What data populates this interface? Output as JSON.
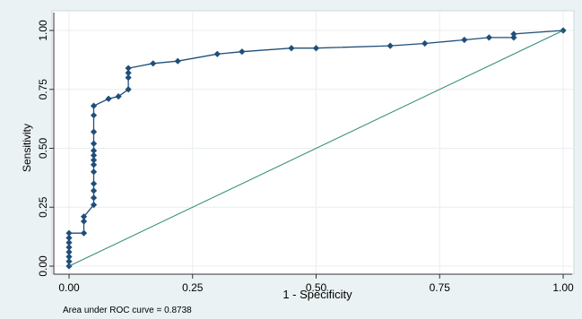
{
  "chart_data": {
    "type": "line",
    "title": "",
    "xlabel": "1 - Specificity",
    "ylabel": "Sensitivity",
    "xlim": [
      0,
      1
    ],
    "ylim": [
      0,
      1
    ],
    "x_ticks": [
      "0.00",
      "0.25",
      "0.50",
      "0.75",
      "1.00"
    ],
    "y_ticks": [
      "0.00",
      "0.25",
      "0.50",
      "0.75",
      "1.00"
    ],
    "grid": true,
    "note": "Area under ROC curve = 0.8738",
    "colors": {
      "curve": "#1f4e79",
      "marker": "#1f4e79",
      "reference": "#2e8b6f",
      "plot_bg": "#ffffff",
      "outer_bg": "#eaf2f3",
      "grid": "#e8eef0"
    },
    "series": [
      {
        "role": "roc",
        "markers": true,
        "points": [
          [
            0,
            0
          ],
          [
            0,
            0.02
          ],
          [
            0,
            0.04
          ],
          [
            0,
            0.06
          ],
          [
            0,
            0.08
          ],
          [
            0,
            0.1
          ],
          [
            0,
            0.12
          ],
          [
            0,
            0.14
          ],
          [
            0.03,
            0.14
          ],
          [
            0.03,
            0.19
          ],
          [
            0.03,
            0.21
          ],
          [
            0.05,
            0.26
          ],
          [
            0.05,
            0.29
          ],
          [
            0.05,
            0.32
          ],
          [
            0.05,
            0.35
          ],
          [
            0.05,
            0.4
          ],
          [
            0.05,
            0.43
          ],
          [
            0.05,
            0.45
          ],
          [
            0.05,
            0.47
          ],
          [
            0.05,
            0.49
          ],
          [
            0.05,
            0.52
          ],
          [
            0.05,
            0.57
          ],
          [
            0.05,
            0.64
          ],
          [
            0.05,
            0.68
          ],
          [
            0.08,
            0.71
          ],
          [
            0.1,
            0.72
          ],
          [
            0.12,
            0.75
          ],
          [
            0.12,
            0.8
          ],
          [
            0.12,
            0.82
          ],
          [
            0.12,
            0.84
          ],
          [
            0.17,
            0.86
          ],
          [
            0.22,
            0.87
          ],
          [
            0.3,
            0.9
          ],
          [
            0.35,
            0.91
          ],
          [
            0.45,
            0.925
          ],
          [
            0.5,
            0.925
          ],
          [
            0.65,
            0.935
          ],
          [
            0.72,
            0.945
          ],
          [
            0.8,
            0.96
          ],
          [
            0.85,
            0.97
          ],
          [
            0.9,
            0.97
          ],
          [
            0.9,
            0.985
          ],
          [
            1,
            1
          ]
        ]
      },
      {
        "role": "reference",
        "markers": false,
        "points": [
          [
            0,
            0
          ],
          [
            1,
            1
          ]
        ]
      }
    ]
  }
}
